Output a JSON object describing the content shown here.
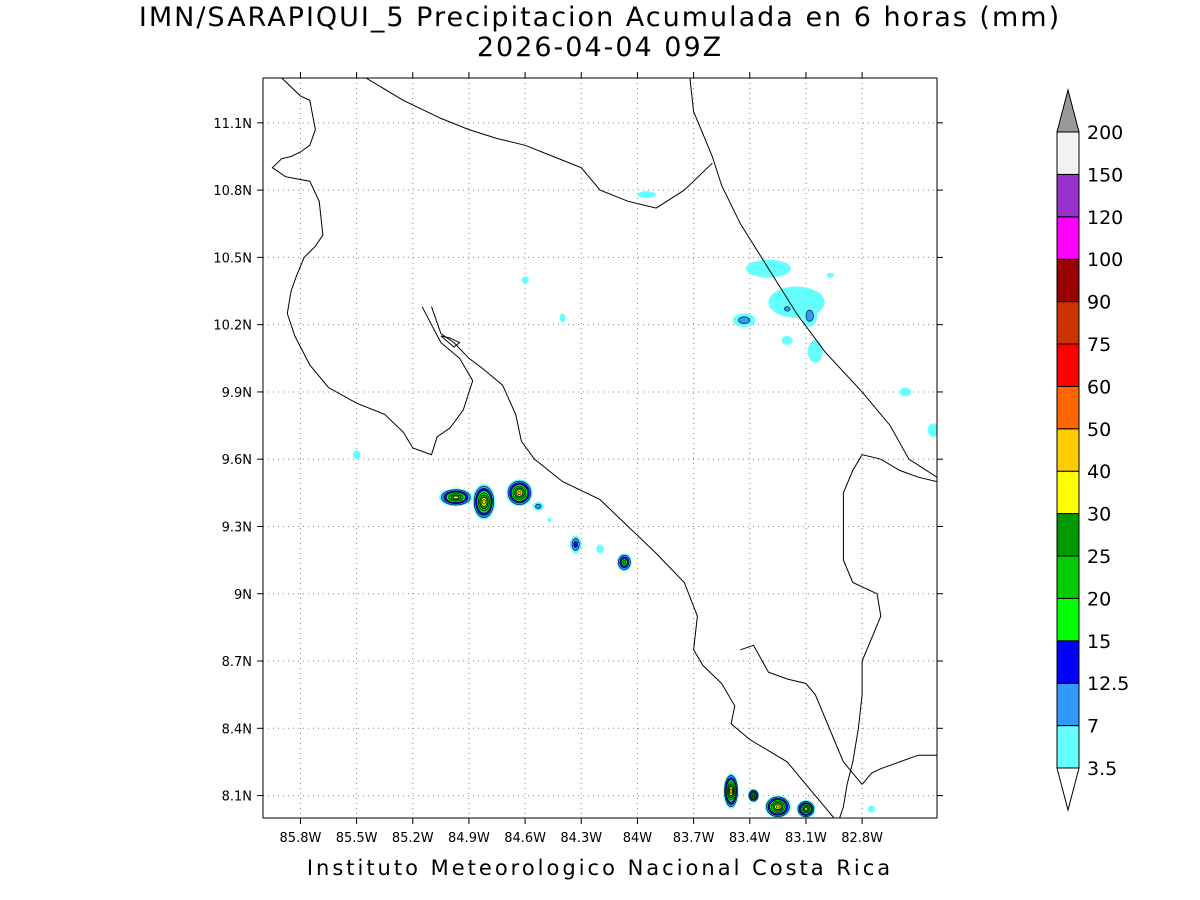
{
  "title": {
    "line1": "IMN/SARAPIQUI_5 Precipitacion Acumulada en 6 horas (mm)",
    "line2": "2026-04-04 09Z"
  },
  "footer": "Instituto Meteorologico Nacional Costa Rica",
  "map": {
    "lon_range": [
      -86.0,
      -82.4
    ],
    "lat_range": [
      8.0,
      11.3
    ],
    "x_ticks": [
      {
        "lon": -85.8,
        "label": "85.8W"
      },
      {
        "lon": -85.5,
        "label": "85.5W"
      },
      {
        "lon": -85.2,
        "label": "85.2W"
      },
      {
        "lon": -84.9,
        "label": "84.9W"
      },
      {
        "lon": -84.6,
        "label": "84.6W"
      },
      {
        "lon": -84.3,
        "label": "84.3W"
      },
      {
        "lon": -84.0,
        "label": "84W"
      },
      {
        "lon": -83.7,
        "label": "83.7W"
      },
      {
        "lon": -83.4,
        "label": "83.4W"
      },
      {
        "lon": -83.1,
        "label": "83.1W"
      },
      {
        "lon": -82.8,
        "label": "82.8W"
      }
    ],
    "y_ticks": [
      {
        "lat": 8.1,
        "label": "8.1N"
      },
      {
        "lat": 8.4,
        "label": "8.4N"
      },
      {
        "lat": 8.7,
        "label": "8.7N"
      },
      {
        "lat": 9.0,
        "label": "9N"
      },
      {
        "lat": 9.3,
        "label": "9.3N"
      },
      {
        "lat": 9.6,
        "label": "9.6N"
      },
      {
        "lat": 9.9,
        "label": "9.9N"
      },
      {
        "lat": 10.2,
        "label": "10.2N"
      },
      {
        "lat": 10.5,
        "label": "10.5N"
      },
      {
        "lat": 10.8,
        "label": "10.8N"
      },
      {
        "lat": 11.1,
        "label": "11.1N"
      }
    ],
    "grid": "dotted",
    "coastlines": [
      [
        [
          -85.9,
          11.3
        ],
        [
          -85.8,
          11.22
        ],
        [
          -85.75,
          11.2
        ],
        [
          -85.72,
          11.07
        ],
        [
          -85.75,
          11.0
        ],
        [
          -85.8,
          10.97
        ],
        [
          -85.85,
          10.95
        ],
        [
          -85.9,
          10.94
        ],
        [
          -85.95,
          10.9
        ],
        [
          -85.88,
          10.86
        ],
        [
          -85.75,
          10.84
        ],
        [
          -85.7,
          10.75
        ],
        [
          -85.68,
          10.6
        ],
        [
          -85.72,
          10.55
        ],
        [
          -85.78,
          10.5
        ],
        [
          -85.82,
          10.42
        ],
        [
          -85.85,
          10.35
        ],
        [
          -85.87,
          10.25
        ],
        [
          -85.83,
          10.15
        ],
        [
          -85.75,
          10.02
        ],
        [
          -85.65,
          9.92
        ],
        [
          -85.5,
          9.85
        ],
        [
          -85.35,
          9.8
        ],
        [
          -85.25,
          9.72
        ],
        [
          -85.2,
          9.65
        ],
        [
          -85.1,
          9.62
        ],
        [
          -85.07,
          9.7
        ],
        [
          -85.0,
          9.74
        ],
        [
          -84.93,
          9.82
        ],
        [
          -84.88,
          9.95
        ],
        [
          -84.95,
          10.05
        ],
        [
          -85.05,
          10.12
        ],
        [
          -85.1,
          10.2
        ],
        [
          -85.15,
          10.28
        ]
      ],
      [
        [
          -85.1,
          10.28
        ],
        [
          -85.05,
          10.16
        ],
        [
          -84.98,
          10.12
        ],
        [
          -84.9,
          10.05
        ],
        [
          -84.82,
          10.0
        ],
        [
          -84.72,
          9.93
        ],
        [
          -84.65,
          9.8
        ],
        [
          -84.62,
          9.68
        ],
        [
          -84.55,
          9.6
        ],
        [
          -84.4,
          9.5
        ],
        [
          -84.2,
          9.42
        ],
        [
          -84.05,
          9.3
        ],
        [
          -83.9,
          9.18
        ],
        [
          -83.75,
          9.05
        ],
        [
          -83.68,
          8.9
        ],
        [
          -83.7,
          8.75
        ],
        [
          -83.65,
          8.68
        ],
        [
          -83.55,
          8.6
        ],
        [
          -83.48,
          8.5
        ],
        [
          -83.5,
          8.42
        ],
        [
          -83.4,
          8.35
        ],
        [
          -83.3,
          8.3
        ],
        [
          -83.2,
          8.25
        ],
        [
          -83.1,
          8.15
        ],
        [
          -83.0,
          8.05
        ],
        [
          -82.95,
          8.0
        ]
      ],
      [
        [
          -83.45,
          8.75
        ],
        [
          -83.38,
          8.77
        ],
        [
          -83.3,
          8.65
        ],
        [
          -83.2,
          8.62
        ],
        [
          -83.1,
          8.6
        ],
        [
          -83.05,
          8.55
        ],
        [
          -83.0,
          8.45
        ],
        [
          -82.95,
          8.35
        ],
        [
          -82.9,
          8.25
        ],
        [
          -82.85,
          8.2
        ],
        [
          -82.8,
          8.15
        ]
      ],
      [
        [
          -82.8,
          8.15
        ],
        [
          -82.75,
          8.2
        ],
        [
          -82.7,
          8.22
        ],
        [
          -82.6,
          8.25
        ],
        [
          -82.5,
          8.28
        ],
        [
          -82.4,
          8.28
        ]
      ],
      [
        [
          -82.92,
          8.0
        ],
        [
          -82.9,
          8.05
        ],
        [
          -82.88,
          8.15
        ],
        [
          -82.85,
          8.25
        ],
        [
          -82.82,
          8.4
        ],
        [
          -82.8,
          8.55
        ],
        [
          -82.8,
          8.7
        ],
        [
          -82.75,
          8.8
        ],
        [
          -82.7,
          8.9
        ],
        [
          -82.72,
          9.0
        ],
        [
          -82.85,
          9.05
        ],
        [
          -82.9,
          9.15
        ],
        [
          -82.9,
          9.3
        ],
        [
          -82.9,
          9.45
        ],
        [
          -82.85,
          9.55
        ],
        [
          -82.8,
          9.62
        ],
        [
          -82.7,
          9.6
        ],
        [
          -82.6,
          9.55
        ],
        [
          -82.5,
          9.52
        ],
        [
          -82.4,
          9.5
        ]
      ],
      [
        [
          -82.4,
          9.52
        ],
        [
          -82.55,
          9.6
        ],
        [
          -82.65,
          9.75
        ],
        [
          -82.8,
          9.9
        ],
        [
          -83.0,
          10.08
        ],
        [
          -83.15,
          10.25
        ],
        [
          -83.3,
          10.45
        ],
        [
          -83.45,
          10.65
        ],
        [
          -83.55,
          10.82
        ],
        [
          -83.6,
          10.95
        ],
        [
          -83.65,
          11.05
        ],
        [
          -83.7,
          11.15
        ],
        [
          -83.72,
          11.3
        ]
      ],
      [
        [
          -83.6,
          10.92
        ],
        [
          -83.75,
          10.8
        ],
        [
          -83.9,
          10.72
        ],
        [
          -84.05,
          10.75
        ],
        [
          -84.2,
          10.8
        ],
        [
          -84.3,
          10.9
        ],
        [
          -84.45,
          10.95
        ],
        [
          -84.6,
          11.0
        ],
        [
          -84.75,
          11.03
        ],
        [
          -84.9,
          11.07
        ],
        [
          -85.05,
          11.12
        ],
        [
          -85.25,
          11.2
        ],
        [
          -85.45,
          11.3
        ]
      ],
      [
        [
          -85.05,
          10.15
        ],
        [
          -84.98,
          10.1
        ],
        [
          -84.95,
          10.12
        ],
        [
          -85.0,
          10.14
        ],
        [
          -85.05,
          10.15
        ]
      ]
    ],
    "precip_blobs": [
      {
        "lon": -84.97,
        "lat": 9.43,
        "rx": 0.09,
        "ry": 0.04,
        "level": "30"
      },
      {
        "lon": -84.82,
        "lat": 9.41,
        "rx": 0.06,
        "ry": 0.08,
        "level": "40"
      },
      {
        "lon": -84.63,
        "lat": 9.45,
        "rx": 0.07,
        "ry": 0.06,
        "level": "40"
      },
      {
        "lon": -84.53,
        "lat": 9.39,
        "rx": 0.03,
        "ry": 0.02,
        "level": "7"
      },
      {
        "lon": -84.33,
        "lat": 9.22,
        "rx": 0.03,
        "ry": 0.04,
        "level": "12.5"
      },
      {
        "lon": -84.2,
        "lat": 9.2,
        "rx": 0.02,
        "ry": 0.02,
        "level": "3.5"
      },
      {
        "lon": -84.07,
        "lat": 9.14,
        "rx": 0.04,
        "ry": 0.04,
        "level": "20"
      },
      {
        "lon": -84.47,
        "lat": 9.33,
        "rx": 0.01,
        "ry": 0.01,
        "level": "3.5"
      },
      {
        "lon": -85.5,
        "lat": 9.62,
        "rx": 0.02,
        "ry": 0.02,
        "level": "3.5"
      },
      {
        "lon": -84.6,
        "lat": 10.4,
        "rx": 0.02,
        "ry": 0.015,
        "level": "3.5"
      },
      {
        "lon": -84.4,
        "lat": 10.23,
        "rx": 0.015,
        "ry": 0.02,
        "level": "3.5"
      },
      {
        "lon": -83.95,
        "lat": 10.78,
        "rx": 0.05,
        "ry": 0.015,
        "level": "3.5"
      },
      {
        "lon": -83.3,
        "lat": 10.45,
        "rx": 0.12,
        "ry": 0.04,
        "level": "3.5"
      },
      {
        "lon": -83.15,
        "lat": 10.3,
        "rx": 0.15,
        "ry": 0.07,
        "level": "3.5"
      },
      {
        "lon": -83.08,
        "lat": 10.24,
        "rx": 0.04,
        "ry": 0.05,
        "level": "7"
      },
      {
        "lon": -83.2,
        "lat": 10.27,
        "rx": 0.03,
        "ry": 0.02,
        "level": "7"
      },
      {
        "lon": -83.43,
        "lat": 10.22,
        "rx": 0.06,
        "ry": 0.03,
        "level": "7"
      },
      {
        "lon": -83.05,
        "lat": 10.08,
        "rx": 0.04,
        "ry": 0.05,
        "level": "3.5"
      },
      {
        "lon": -83.2,
        "lat": 10.13,
        "rx": 0.03,
        "ry": 0.02,
        "level": "3.5"
      },
      {
        "lon": -82.57,
        "lat": 9.9,
        "rx": 0.03,
        "ry": 0.02,
        "level": "3.5"
      },
      {
        "lon": -82.42,
        "lat": 9.73,
        "rx": 0.03,
        "ry": 0.03,
        "level": "3.5"
      },
      {
        "lon": -82.97,
        "lat": 10.42,
        "rx": 0.02,
        "ry": 0.01,
        "level": "3.5"
      },
      {
        "lon": -83.5,
        "lat": 8.12,
        "rx": 0.04,
        "ry": 0.08,
        "level": "40"
      },
      {
        "lon": -83.38,
        "lat": 8.1,
        "rx": 0.03,
        "ry": 0.03,
        "level": "25"
      },
      {
        "lon": -83.25,
        "lat": 8.05,
        "rx": 0.07,
        "ry": 0.05,
        "level": "40"
      },
      {
        "lon": -83.1,
        "lat": 8.04,
        "rx": 0.05,
        "ry": 0.04,
        "level": "30"
      },
      {
        "lon": -82.75,
        "lat": 8.04,
        "rx": 0.02,
        "ry": 0.015,
        "level": "3.5"
      }
    ]
  },
  "colorbar": {
    "levels": [
      {
        "label": "3.5",
        "color": "#66ffff"
      },
      {
        "label": "7",
        "color": "#3399ff"
      },
      {
        "label": "12.5",
        "color": "#0000ff"
      },
      {
        "label": "15",
        "color": "#00ff00"
      },
      {
        "label": "20",
        "color": "#00cc00"
      },
      {
        "label": "25",
        "color": "#009900"
      },
      {
        "label": "30",
        "color": "#ffff00"
      },
      {
        "label": "40",
        "color": "#ffcc00"
      },
      {
        "label": "50",
        "color": "#ff6600"
      },
      {
        "label": "60",
        "color": "#ff0000"
      },
      {
        "label": "75",
        "color": "#cc3300"
      },
      {
        "label": "90",
        "color": "#990000"
      },
      {
        "label": "100",
        "color": "#ff00ff"
      },
      {
        "label": "120",
        "color": "#9933cc"
      },
      {
        "label": "150",
        "color": "#f2f2f2"
      },
      {
        "label": "200",
        "color": "#999999"
      }
    ],
    "top_arrow_color": "#999999",
    "bottom_arrow_color": "#ffffff",
    "below_first_color": "#66ffff"
  }
}
